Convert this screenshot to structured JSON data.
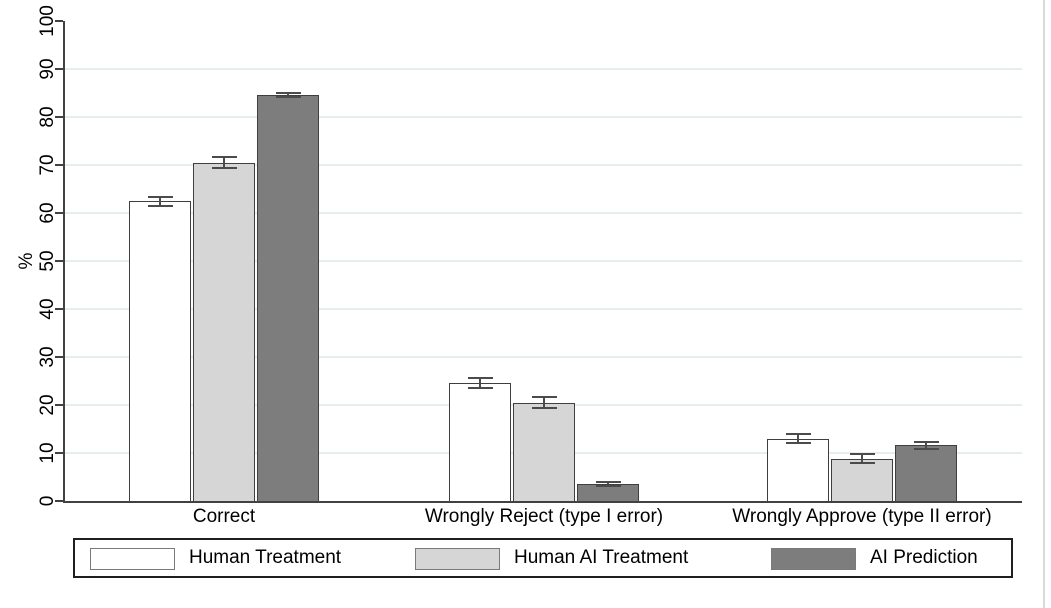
{
  "chart_data": {
    "type": "bar",
    "title": "",
    "ylabel": "%",
    "ylim": [
      0,
      100
    ],
    "yticks": [
      0,
      10,
      20,
      30,
      40,
      50,
      60,
      70,
      80,
      90,
      100
    ],
    "grid": "horizontal gridlines at 10-90, very light gray, on",
    "error_bars": true,
    "legend_position": "bottom",
    "categories": [
      "Correct",
      "Wrongly Reject (type I error)",
      "Wrongly Approve (type II error)"
    ],
    "series": [
      {
        "name": "Human Treatment",
        "fill": "#ffffff",
        "values": [
          62.4,
          24.6,
          13.0
        ],
        "errors": [
          1.0,
          1.0,
          0.9
        ]
      },
      {
        "name": "Human AI Treatment",
        "fill": "#d6d6d6",
        "values": [
          70.5,
          20.5,
          8.8
        ],
        "errors": [
          1.2,
          1.2,
          0.9
        ]
      },
      {
        "name": "AI Prediction",
        "fill": "#7d7d7d",
        "values": [
          84.6,
          3.5,
          11.6
        ],
        "errors": [
          0.5,
          0.4,
          0.7
        ]
      }
    ],
    "colors": {
      "axis": "#414141",
      "gridline": "#e5edef",
      "bar_border": "#3f3f3f",
      "error_bar": "#4b4b4b",
      "legend_border": "#1f1f1f",
      "page_edge_line": "#d9d9d9"
    }
  }
}
